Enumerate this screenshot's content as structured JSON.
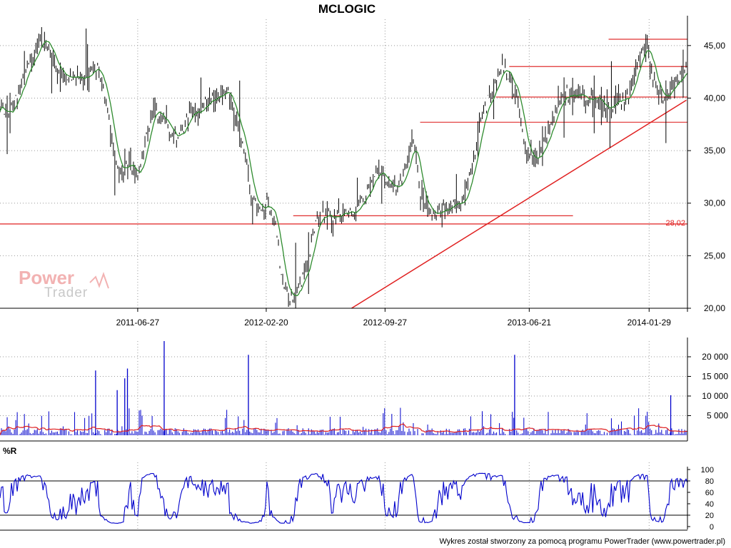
{
  "title": "MCLOGIC",
  "footer": "Wykres został stworzony za pomocą programu PowerTrader (www.powertrader.pl)",
  "logo": {
    "word1": "Power",
    "word2": "Trader"
  },
  "colors": {
    "price_bar": "#000000",
    "ma_line": "#2e8b2e",
    "trend": "#e02020",
    "hline": "#e03030",
    "volume": "#0000cc",
    "volume_ma": "#e02020",
    "wr_line": "#0000cc",
    "grid": "#999999"
  },
  "chart_data": [
    {
      "type": "line",
      "name": "price",
      "title": "MCLOGIC",
      "x_tick_labels": [
        "2011-06-27",
        "2012-02-20",
        "2012-09-27",
        "2013-06-21",
        "2014-01-29"
      ],
      "y_tick_labels": [
        "45,00",
        "40,00",
        "35,00",
        "30,00",
        "25,00",
        "20,00"
      ],
      "ylim": [
        20,
        47.5
      ],
      "grid": true,
      "support_label": "28,02",
      "support_level": 28.02,
      "resistance_levels": [
        45.6,
        43.0,
        40.1,
        37.7,
        28.8
      ],
      "trendline": {
        "from": {
          "date": "2012-07-27",
          "value": 20.0
        },
        "to": {
          "date": "2014-04-08",
          "value": 39.8
        }
      },
      "series": [
        {
          "name": "close",
          "x_range": [
            "2010-10-15",
            "2014-04-10"
          ],
          "anchor_values": [
            39.0,
            38.5,
            40.0,
            42.0,
            44.0,
            46.0,
            45.0,
            43.0,
            42.0,
            42.0,
            42.0,
            42.0,
            43.0,
            40.0,
            35.0,
            33.0,
            34.0,
            32.0,
            36.0,
            39.0,
            38.0,
            37.0,
            36.0,
            38.0,
            39.0,
            39.0,
            40.0,
            40.0,
            41.0,
            38.0,
            36.0,
            31.0,
            29.5,
            30.0,
            28.0,
            22.0,
            21.0,
            22.0,
            24.0,
            28.0,
            28.8,
            28.6,
            28.8,
            29.0,
            29.5,
            30.5,
            32.0,
            33.0,
            32.0,
            31.5,
            33.0,
            36.0,
            31.0,
            29.5,
            29.0,
            29.5,
            30.0,
            30.0,
            32.0,
            36.0,
            39.0,
            41.0,
            43.0,
            42.0,
            40.0,
            35.0,
            34.0,
            35.0,
            37.0,
            39.5,
            40.5,
            40.0,
            40.0,
            40.0,
            40.0,
            39.0,
            39.5,
            40.0,
            40.5,
            44.0,
            45.0,
            41.0,
            40.0,
            41.0,
            42.0,
            42.5
          ]
        }
      ]
    },
    {
      "type": "bar",
      "name": "volume",
      "y_tick_labels": [
        "20 000",
        "15 000",
        "10 000",
        "5 000"
      ],
      "ylim": [
        0,
        24000
      ],
      "spikes": [
        {
          "date": "2011-04-10",
          "value": 16500
        },
        {
          "date": "2011-05-20",
          "value": 11500
        },
        {
          "date": "2011-06-08",
          "value": 17000
        },
        {
          "date": "2011-06-03",
          "value": 14500
        },
        {
          "date": "2011-08-15",
          "value": 24000
        },
        {
          "date": "2012-01-18",
          "value": 20500
        },
        {
          "date": "2013-05-25",
          "value": 20500
        },
        {
          "date": "2014-03-10",
          "value": 10200
        }
      ]
    },
    {
      "type": "line",
      "name": "%R",
      "label": "%R",
      "y_tick_labels": [
        "100",
        "80",
        "60",
        "40",
        "20",
        "0"
      ],
      "ylim": [
        0,
        100
      ],
      "reference_lines": [
        80,
        20
      ]
    }
  ]
}
